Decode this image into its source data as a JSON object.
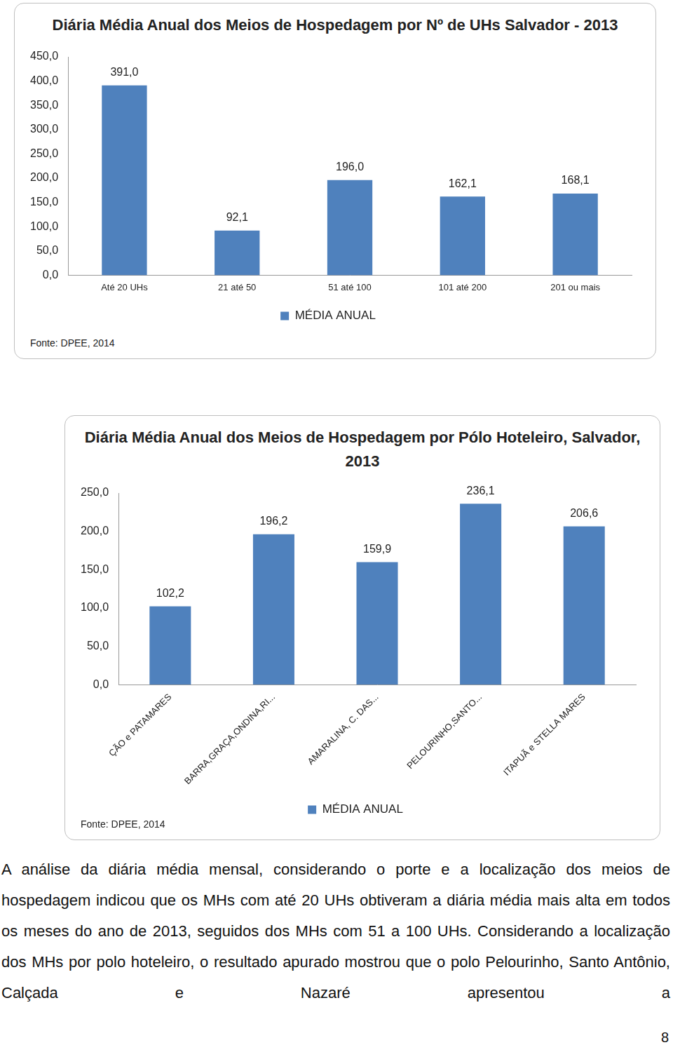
{
  "chart_data": [
    {
      "type": "bar",
      "title": "Diária Média Anual dos Meios de Hospedagem por Nº de UHs Salvador - 2013",
      "categories": [
        "Até 20 UHs",
        "21 até 50",
        "51 até 100",
        "101 até 200",
        "201 ou mais"
      ],
      "series": [
        {
          "name": "MÉDIA ANUAL",
          "color": "#4f81bd",
          "values": [
            391.0,
            92.1,
            196.0,
            162.1,
            168.1
          ],
          "value_labels": [
            "391,0",
            "92,1",
            "196,0",
            "162,1",
            "168,1"
          ]
        }
      ],
      "ylim": [
        0,
        450
      ],
      "yticks": [
        {
          "value": 0,
          "label": "0,0"
        },
        {
          "value": 50,
          "label": "50,0"
        },
        {
          "value": 100,
          "label": "100,0"
        },
        {
          "value": 150,
          "label": "150,0"
        },
        {
          "value": 200,
          "label": "200,0"
        },
        {
          "value": 250,
          "label": "250,0"
        },
        {
          "value": 300,
          "label": "300,0"
        },
        {
          "value": 350,
          "label": "350,0"
        },
        {
          "value": 400,
          "label": "400,0"
        },
        {
          "value": 450,
          "label": "450,0"
        }
      ],
      "grid": false,
      "legend": "bottom",
      "data_labels": true,
      "annotations": [
        "Fonte: DPEE, 2014"
      ]
    },
    {
      "type": "bar",
      "title": "Diária Média Anual dos Meios de Hospedagem por Pólo Hoteleiro, Salvador, 2013",
      "categories": [
        "ÇÃO e PATAMARES",
        "BARRA,GRAÇA,ONDINA,RI...",
        "AMARALINA, C. DAS...",
        "PELOURINHO,SANTO...",
        "ITAPUÃ e STELLA MARES"
      ],
      "series": [
        {
          "name": "MÉDIA ANUAL",
          "color": "#4f81bd",
          "values": [
            102.2,
            196.2,
            159.9,
            236.1,
            206.6
          ],
          "value_labels": [
            "102,2",
            "196,2",
            "159,9",
            "236,1",
            "206,6"
          ]
        }
      ],
      "ylim": [
        0,
        250
      ],
      "yticks": [
        {
          "value": 0,
          "label": "0,0"
        },
        {
          "value": 50,
          "label": "50,0"
        },
        {
          "value": 100,
          "label": "100,0"
        },
        {
          "value": 150,
          "label": "150,0"
        },
        {
          "value": 200,
          "label": "200,0"
        },
        {
          "value": 250,
          "label": "250,0"
        }
      ],
      "grid": false,
      "legend": "bottom",
      "data_labels": true,
      "annotations": [
        "Fonte: DPEE, 2014"
      ]
    }
  ],
  "text": {
    "paragraph": "A análise da diária média mensal, considerando o porte e a localização dos meios de hospedagem indicou que os MHs com até 20 UHs obtiveram a diária média mais alta em todos os meses do ano de 2013, seguidos dos MHs com 51 a 100 UHs. Considerando a localização dos MHs por polo hoteleiro, o resultado apurado mostrou que o polo Pelourinho, Santo Antônio, Calçada e Nazaré apresentou a",
    "page_number": "8"
  }
}
